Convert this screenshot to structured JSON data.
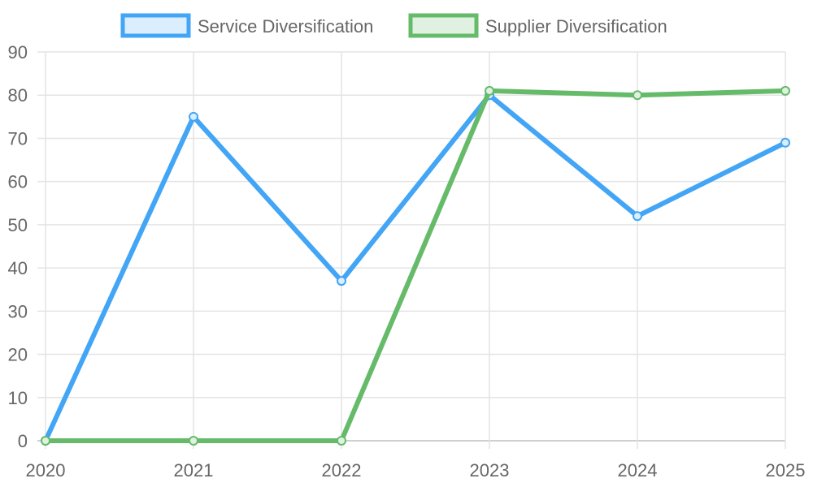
{
  "chart_data": {
    "type": "line",
    "title": "",
    "xlabel": "",
    "ylabel": "",
    "categories": [
      "2020",
      "2021",
      "2022",
      "2023",
      "2024",
      "2025"
    ],
    "series": [
      {
        "name": "Service Diversification",
        "color": "#42a5f5",
        "fill": "#dbeefd",
        "values": [
          0,
          75,
          37,
          80,
          52,
          69
        ]
      },
      {
        "name": "Supplier Diversification",
        "color": "#66bb6a",
        "fill": "#e0f1e1",
        "values": [
          0,
          0,
          0,
          81,
          80,
          81
        ]
      }
    ],
    "ylim": [
      0,
      90
    ],
    "yticks": [
      "0",
      "10",
      "20",
      "30",
      "40",
      "50",
      "60",
      "70",
      "80",
      "90"
    ],
    "grid": true,
    "legend_position": "top"
  },
  "legend": {
    "items": [
      {
        "label": "Service Diversification"
      },
      {
        "label": "Supplier Diversification"
      }
    ]
  }
}
